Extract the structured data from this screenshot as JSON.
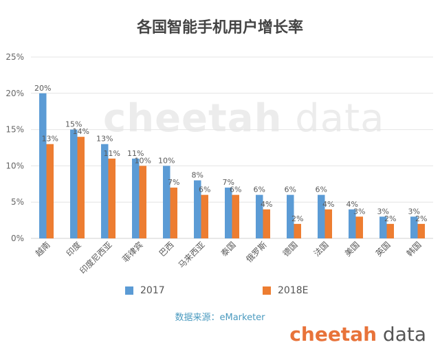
{
  "page": {
    "title": "各国智能手机用户增长率",
    "watermark_bold": "cheetah",
    "watermark_light": " data",
    "source": "数据来源：eMarketer",
    "brand_bold": "cheetah",
    "brand_light": " data"
  },
  "chart_data": {
    "type": "bar",
    "title": "各国智能手机用户增长率",
    "xlabel": "",
    "ylabel": "",
    "ylim": [
      0,
      25
    ],
    "yticks": [
      "0%",
      "5%",
      "10%",
      "15%",
      "20%",
      "25%"
    ],
    "grid": true,
    "legend_position": "bottom",
    "categories": [
      "越南",
      "印度",
      "印度尼西亚",
      "菲律宾",
      "巴西",
      "马来西亚",
      "泰国",
      "俄罗斯",
      "德国",
      "法国",
      "美国",
      "英国",
      "韩国"
    ],
    "series": [
      {
        "name": "2017",
        "color": "#5b9bd5",
        "values": [
          20,
          15,
          13,
          11,
          10,
          8,
          7,
          6,
          6,
          6,
          4,
          3,
          3
        ]
      },
      {
        "name": "2018E",
        "color": "#ed7d31",
        "values": [
          13,
          14,
          11,
          10,
          7,
          6,
          6,
          4,
          2,
          4,
          3,
          2,
          2
        ]
      }
    ]
  }
}
